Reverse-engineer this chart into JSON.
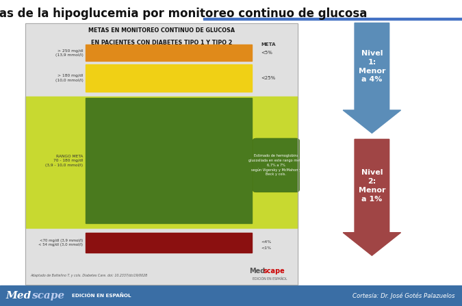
{
  "title": "Metas de la hipoglucemia por monitoreo continuo de glucosa",
  "title_fontsize": 12,
  "title_fontweight": "bold",
  "bg_color": "#ffffff",
  "header_line_color": "#4472c4",
  "chart_box_bg": "#e0e0e0",
  "chart_title_line1": "METAS EN MONITOREO CONTINUO DE GLUCOSA",
  "chart_title_line2": "EN PACIENTES CON DIABETES TIPO 1 Y TIPO 2",
  "green_bg_color": "#c8d930",
  "annotation_text": "Estimado de hemoglobina\nglucosliada en este rango meta:\n6,7% a 7%\nsegún Vigersky y McMahon y\nBeck y cols.",
  "footer_text": "Adaptado de Battelino T. y cols. Diabetes Care. doi: 10.2337/dci19/0028",
  "medscape_sub": "EDICIÓN EN ESPAÑOL",
  "bottom_bar_color": "#3a6ea5",
  "bottom_bar_right": "Cortesía: Dr. José Gotés Palazuelos",
  "arrow1_color": "#5b8db8",
  "arrow1_label": "Nivel\n1:\nMenor\na 4%",
  "arrow2_color": "#a04545",
  "arrow2_label": "Nivel\n2:\nMenor\na 1%"
}
